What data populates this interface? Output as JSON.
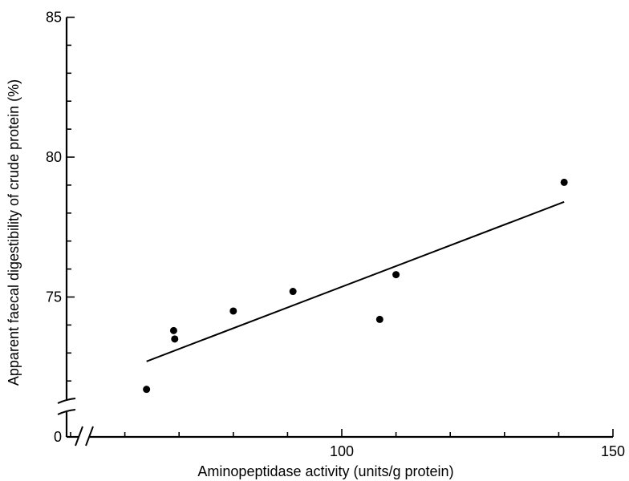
{
  "chart_data": {
    "type": "scatter",
    "title": "",
    "xlabel": "Aminopeptidase activity (units/g protein)",
    "ylabel": "Apparent faecal digestibility of crude protein (%)",
    "xlim": [
      45,
      150
    ],
    "ylim": [
      70.7,
      85
    ],
    "x_axis_break": true,
    "y_axis_break": true,
    "x_ticks": [
      {
        "value": 50,
        "label": ""
      },
      {
        "value": 60,
        "label": ""
      },
      {
        "value": 70,
        "label": ""
      },
      {
        "value": 80,
        "label": ""
      },
      {
        "value": 90,
        "label": ""
      },
      {
        "value": 100,
        "label": "100"
      },
      {
        "value": 110,
        "label": ""
      },
      {
        "value": 120,
        "label": ""
      },
      {
        "value": 130,
        "label": ""
      },
      {
        "value": 140,
        "label": ""
      },
      {
        "value": 150,
        "label": "150"
      }
    ],
    "x_origin_label": "0",
    "y_ticks": [
      {
        "value": 72,
        "label": ""
      },
      {
        "value": 73,
        "label": ""
      },
      {
        "value": 74,
        "label": ""
      },
      {
        "value": 75,
        "label": "75"
      },
      {
        "value": 76,
        "label": ""
      },
      {
        "value": 77,
        "label": ""
      },
      {
        "value": 78,
        "label": ""
      },
      {
        "value": 79,
        "label": ""
      },
      {
        "value": 80,
        "label": "80"
      },
      {
        "value": 81,
        "label": ""
      },
      {
        "value": 82,
        "label": ""
      },
      {
        "value": 83,
        "label": ""
      },
      {
        "value": 84,
        "label": ""
      },
      {
        "value": 85,
        "label": "85"
      }
    ],
    "y_origin_label": "0",
    "points": [
      {
        "x": 64,
        "y": 71.7
      },
      {
        "x": 69,
        "y": 73.8
      },
      {
        "x": 69.2,
        "y": 73.5
      },
      {
        "x": 80,
        "y": 74.5
      },
      {
        "x": 91,
        "y": 75.2
      },
      {
        "x": 107,
        "y": 74.2
      },
      {
        "x": 110,
        "y": 75.8
      },
      {
        "x": 141,
        "y": 79.1
      }
    ],
    "fit_line": {
      "x": [
        64,
        141
      ],
      "y": [
        72.7,
        78.4
      ]
    },
    "grid": false,
    "legend": "none"
  }
}
